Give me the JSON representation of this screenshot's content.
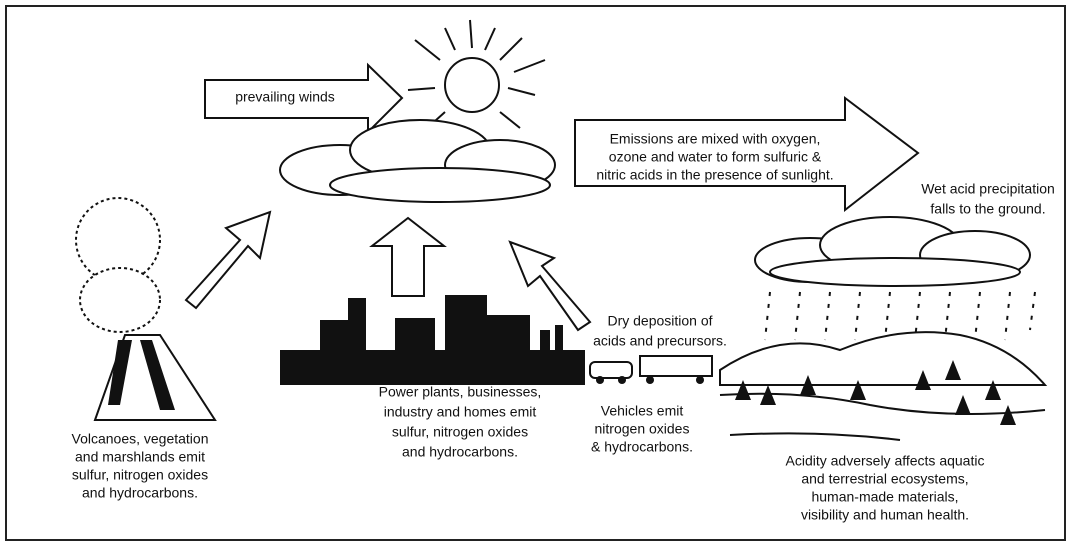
{
  "winds": "prevailing winds",
  "emissions": [
    "Emissions are mixed with oxygen,",
    "ozone and water to form sulfuric &",
    "nitric acids in the presence of sunlight."
  ],
  "wet": [
    "Wet acid precipitation",
    "falls to the ground."
  ],
  "dry": [
    "Dry deposition of",
    "acids and precursors."
  ],
  "vehicles": [
    "Vehicles emit",
    "nitrogen oxides",
    "& hydrocarbons."
  ],
  "power": [
    "Power plants, businesses,",
    "industry and homes emit",
    "sulfur, nitrogen oxides",
    "and hydrocarbons."
  ],
  "volcanoes": [
    "Volcanoes, vegetation",
    "and marshlands emit",
    "sulfur, nitrogen oxides",
    "and hydrocarbons."
  ],
  "acidity": [
    "Acidity adversely affects aquatic",
    "and terrestrial ecosystems,",
    "human-made materials,",
    "visibility and human health."
  ]
}
